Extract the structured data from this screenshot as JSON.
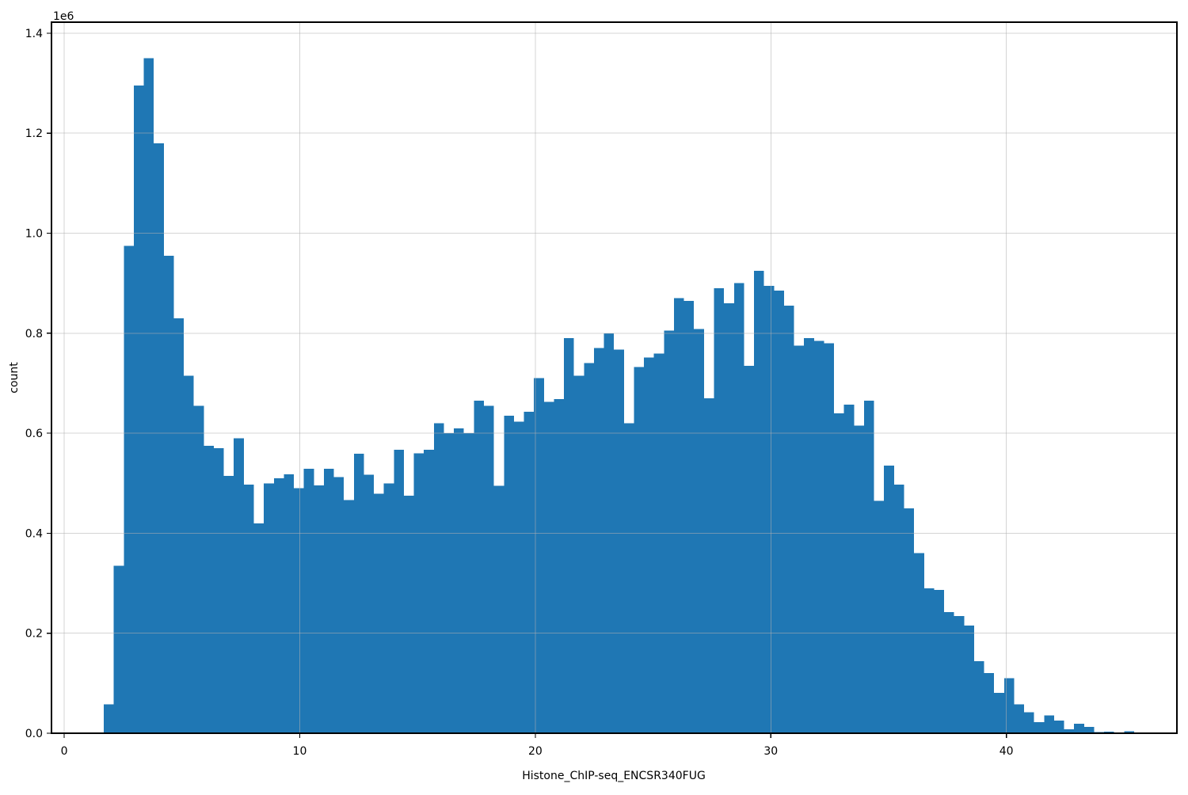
{
  "chart_data": {
    "type": "bar",
    "subtype": "histogram",
    "title": "",
    "xlabel": "Histone_ChIP-seq_ENCSR340FUG",
    "ylabel": "count",
    "y_offset_label": "1e6",
    "bar_color": "#1f77b4",
    "grid_color": "#b0b0b0",
    "spine_color": "#000000",
    "background_color": "#ffffff",
    "grid": true,
    "legend_position": "none",
    "x_ticks": [
      0,
      10,
      20,
      30,
      40
    ],
    "y_ticks": [
      0.0,
      0.2,
      0.4,
      0.6,
      0.8,
      1.0,
      1.2,
      1.4
    ],
    "xlim": [
      -0.54,
      47.24
    ],
    "ylim": [
      0,
      1.422
    ],
    "y_unit": "millions",
    "bin_start": 1.68,
    "bin_width": 0.4247,
    "counts_millions": [
      0.058,
      0.335,
      0.975,
      1.295,
      1.35,
      1.18,
      0.955,
      0.83,
      0.715,
      0.655,
      0.575,
      0.57,
      0.515,
      0.59,
      0.497,
      0.42,
      0.5,
      0.51,
      0.518,
      0.49,
      0.529,
      0.496,
      0.529,
      0.512,
      0.466,
      0.559,
      0.517,
      0.479,
      0.5,
      0.567,
      0.475,
      0.56,
      0.567,
      0.62,
      0.6,
      0.61,
      0.6,
      0.665,
      0.655,
      0.495,
      0.635,
      0.623,
      0.643,
      0.71,
      0.663,
      0.668,
      0.79,
      0.715,
      0.74,
      0.77,
      0.8,
      0.767,
      0.62,
      0.732,
      0.751,
      0.759,
      0.805,
      0.87,
      0.865,
      0.808,
      0.67,
      0.89,
      0.86,
      0.9,
      0.735,
      0.925,
      0.895,
      0.885,
      0.855,
      0.775,
      0.79,
      0.785,
      0.78,
      0.64,
      0.657,
      0.615,
      0.665,
      0.465,
      0.535,
      0.497,
      0.45,
      0.36,
      0.29,
      0.287,
      0.242,
      0.234,
      0.215,
      0.144,
      0.12,
      0.081,
      0.11,
      0.058,
      0.042,
      0.022,
      0.036,
      0.025,
      0.008,
      0.019,
      0.013,
      0.002,
      0.003,
      0.0,
      0.004
    ]
  }
}
